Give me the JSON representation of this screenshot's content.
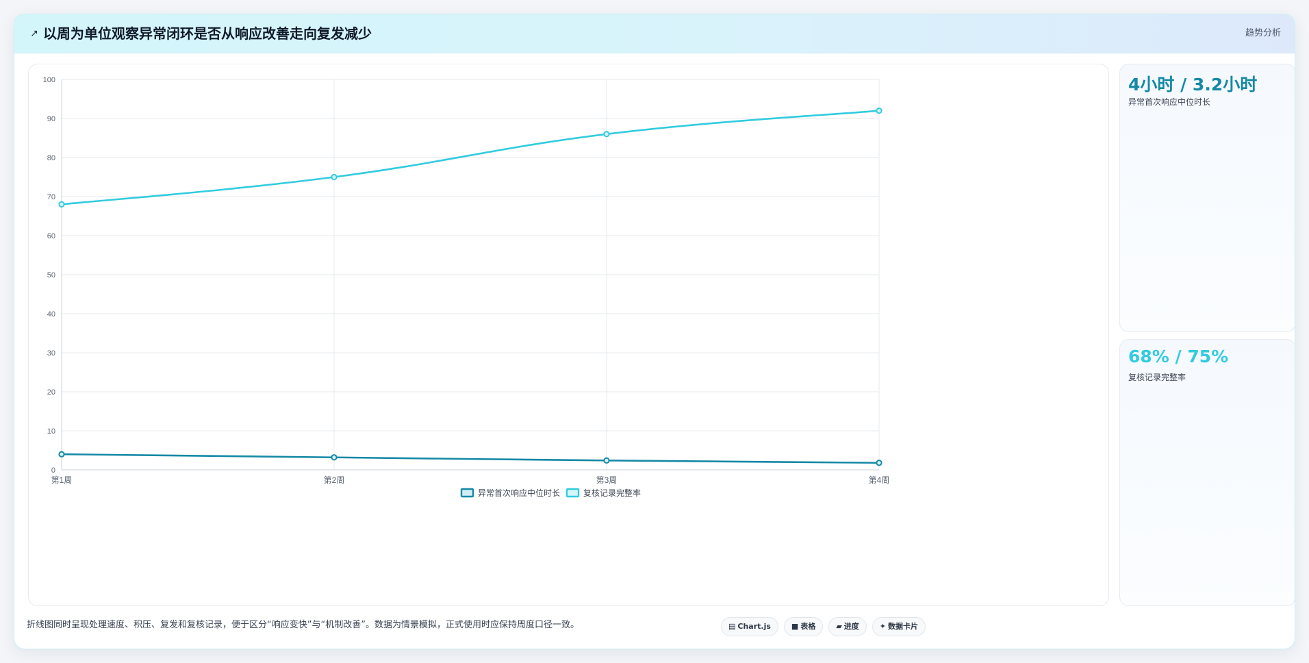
{
  "header": {
    "icon": "line-chart-icon",
    "title": "以周为单位观察异常闭环是否从响应改善走向复发减少",
    "tag": "趋势分析"
  },
  "colors": {
    "series1": "#1589a6",
    "series2": "#33cbe0",
    "grid": "#e6e9ee",
    "axis_text": "#5b6470"
  },
  "chart_data": {
    "type": "line",
    "categories": [
      "第1周",
      "第2周",
      "第3周",
      "第4周"
    ],
    "series": [
      {
        "name": "异常首次响应中位时长",
        "values": [
          4,
          3.2,
          2.4,
          1.8
        ]
      },
      {
        "name": "复核记录完整率",
        "values": [
          68,
          75,
          86,
          92
        ]
      }
    ],
    "ylim": [
      0,
      100
    ],
    "yticks": [
      0,
      10,
      20,
      30,
      40,
      50,
      60,
      70,
      80,
      90,
      100
    ],
    "grid": true,
    "legend": "bottom-center"
  },
  "kpis": [
    {
      "value": "4小时 / 3.2小时",
      "label": "异常首次响应中位时长",
      "color": "#1589a6"
    },
    {
      "value": "68% / 75%",
      "label": "复核记录完整率",
      "color": "#33cbe0"
    }
  ],
  "footer": {
    "note": "折线图同时呈现处理速度、积压、复发和复核记录，便于区分“响应变快”与“机制改善”。数据为情景模拟，正式使用时应保持周度口径一致。",
    "pills": [
      {
        "icon": "chart-icon",
        "glyph": "▤",
        "label": "Chart.js"
      },
      {
        "icon": "table-icon",
        "glyph": "■",
        "label": "表格"
      },
      {
        "icon": "progress-icon",
        "glyph": "▰",
        "label": "进度"
      },
      {
        "icon": "card-icon",
        "glyph": "✦",
        "label": "数据卡片"
      }
    ]
  }
}
